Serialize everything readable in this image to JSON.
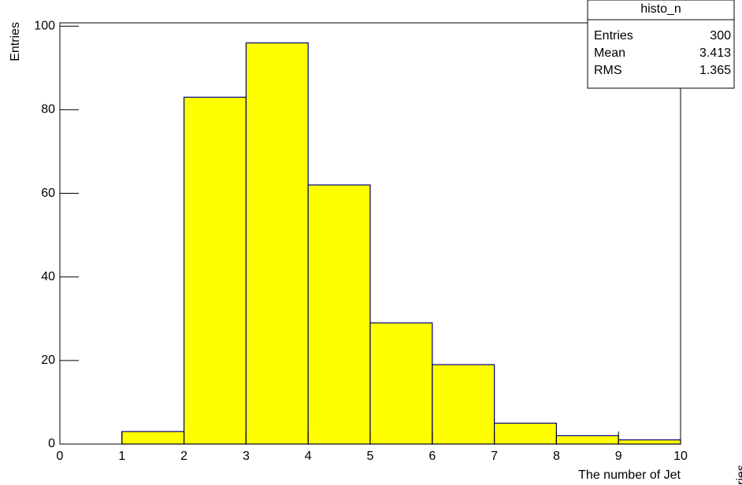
{
  "chart_data": {
    "type": "histogram",
    "bins": [
      0,
      1,
      2,
      3,
      4,
      5,
      6,
      7,
      8,
      9,
      10
    ],
    "values": [
      0,
      3,
      83,
      96,
      62,
      29,
      19,
      5,
      2,
      1
    ],
    "color": "#ffff00",
    "edge_color": "#000080",
    "xlabel": "The number of Jet",
    "ylabel": "Entries",
    "xlim": [
      0,
      10
    ],
    "xticks": [
      0,
      1,
      2,
      3,
      4,
      5,
      6,
      7,
      8,
      9,
      10
    ],
    "ylim": [
      0,
      100.8
    ],
    "yticks": [
      0,
      20,
      40,
      60,
      80,
      100
    ],
    "stats": {
      "title": "histo_n",
      "rows": [
        [
          "Entries",
          "300"
        ],
        [
          "Mean",
          "3.413"
        ],
        [
          "RMS",
          "1.365"
        ]
      ]
    },
    "next_pad_ylabel": "Entries"
  }
}
